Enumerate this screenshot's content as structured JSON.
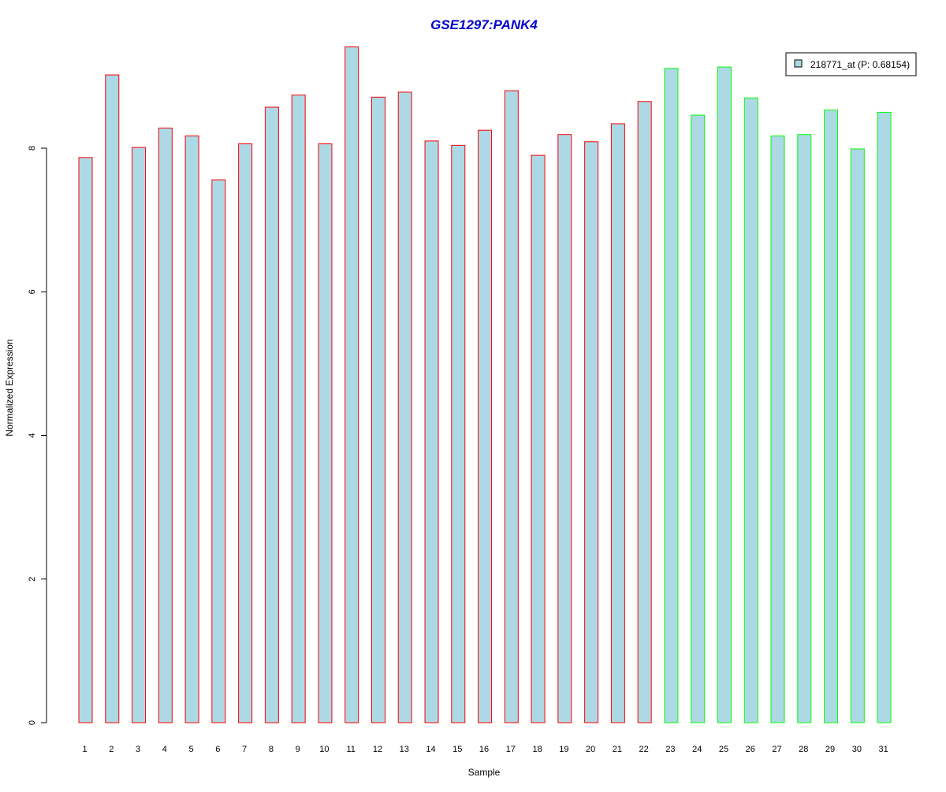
{
  "chart_data": {
    "type": "bar",
    "title": "GSE1297:PANK4",
    "xlabel": "Sample",
    "ylabel": "Normalized Expression",
    "ylim": [
      0,
      9.4
    ],
    "yticks": [
      "0",
      "2",
      "4",
      "6",
      "8"
    ],
    "categories": [
      "1",
      "2",
      "3",
      "4",
      "5",
      "6",
      "7",
      "8",
      "9",
      "10",
      "11",
      "12",
      "13",
      "14",
      "15",
      "16",
      "17",
      "18",
      "19",
      "20",
      "21",
      "22",
      "23",
      "24",
      "25",
      "26",
      "27",
      "28",
      "29",
      "30",
      "31"
    ],
    "values": [
      7.87,
      9.02,
      8.01,
      8.28,
      8.17,
      7.56,
      8.06,
      8.57,
      8.74,
      8.06,
      9.41,
      8.71,
      8.78,
      8.1,
      8.04,
      8.25,
      8.8,
      7.9,
      8.19,
      8.09,
      8.34,
      8.65,
      9.11,
      8.46,
      9.13,
      8.7,
      8.17,
      8.19,
      8.53,
      7.99,
      8.5
    ],
    "group_border_colors": [
      "#ff0000",
      "#ff0000",
      "#ff0000",
      "#ff0000",
      "#ff0000",
      "#ff0000",
      "#ff0000",
      "#ff0000",
      "#ff0000",
      "#ff0000",
      "#ff0000",
      "#ff0000",
      "#ff0000",
      "#ff0000",
      "#ff0000",
      "#ff0000",
      "#ff0000",
      "#ff0000",
      "#ff0000",
      "#ff0000",
      "#ff0000",
      "#ff0000",
      "#00ff00",
      "#00ff00",
      "#00ff00",
      "#00ff00",
      "#00ff00",
      "#00ff00",
      "#00ff00",
      "#00ff00",
      "#00ff00"
    ],
    "bar_fill": "#add8e6",
    "legend": {
      "label": "218771_at (P: 0.68154)",
      "placement": "top-right"
    },
    "grid": false,
    "title_color": "#0000cd"
  }
}
